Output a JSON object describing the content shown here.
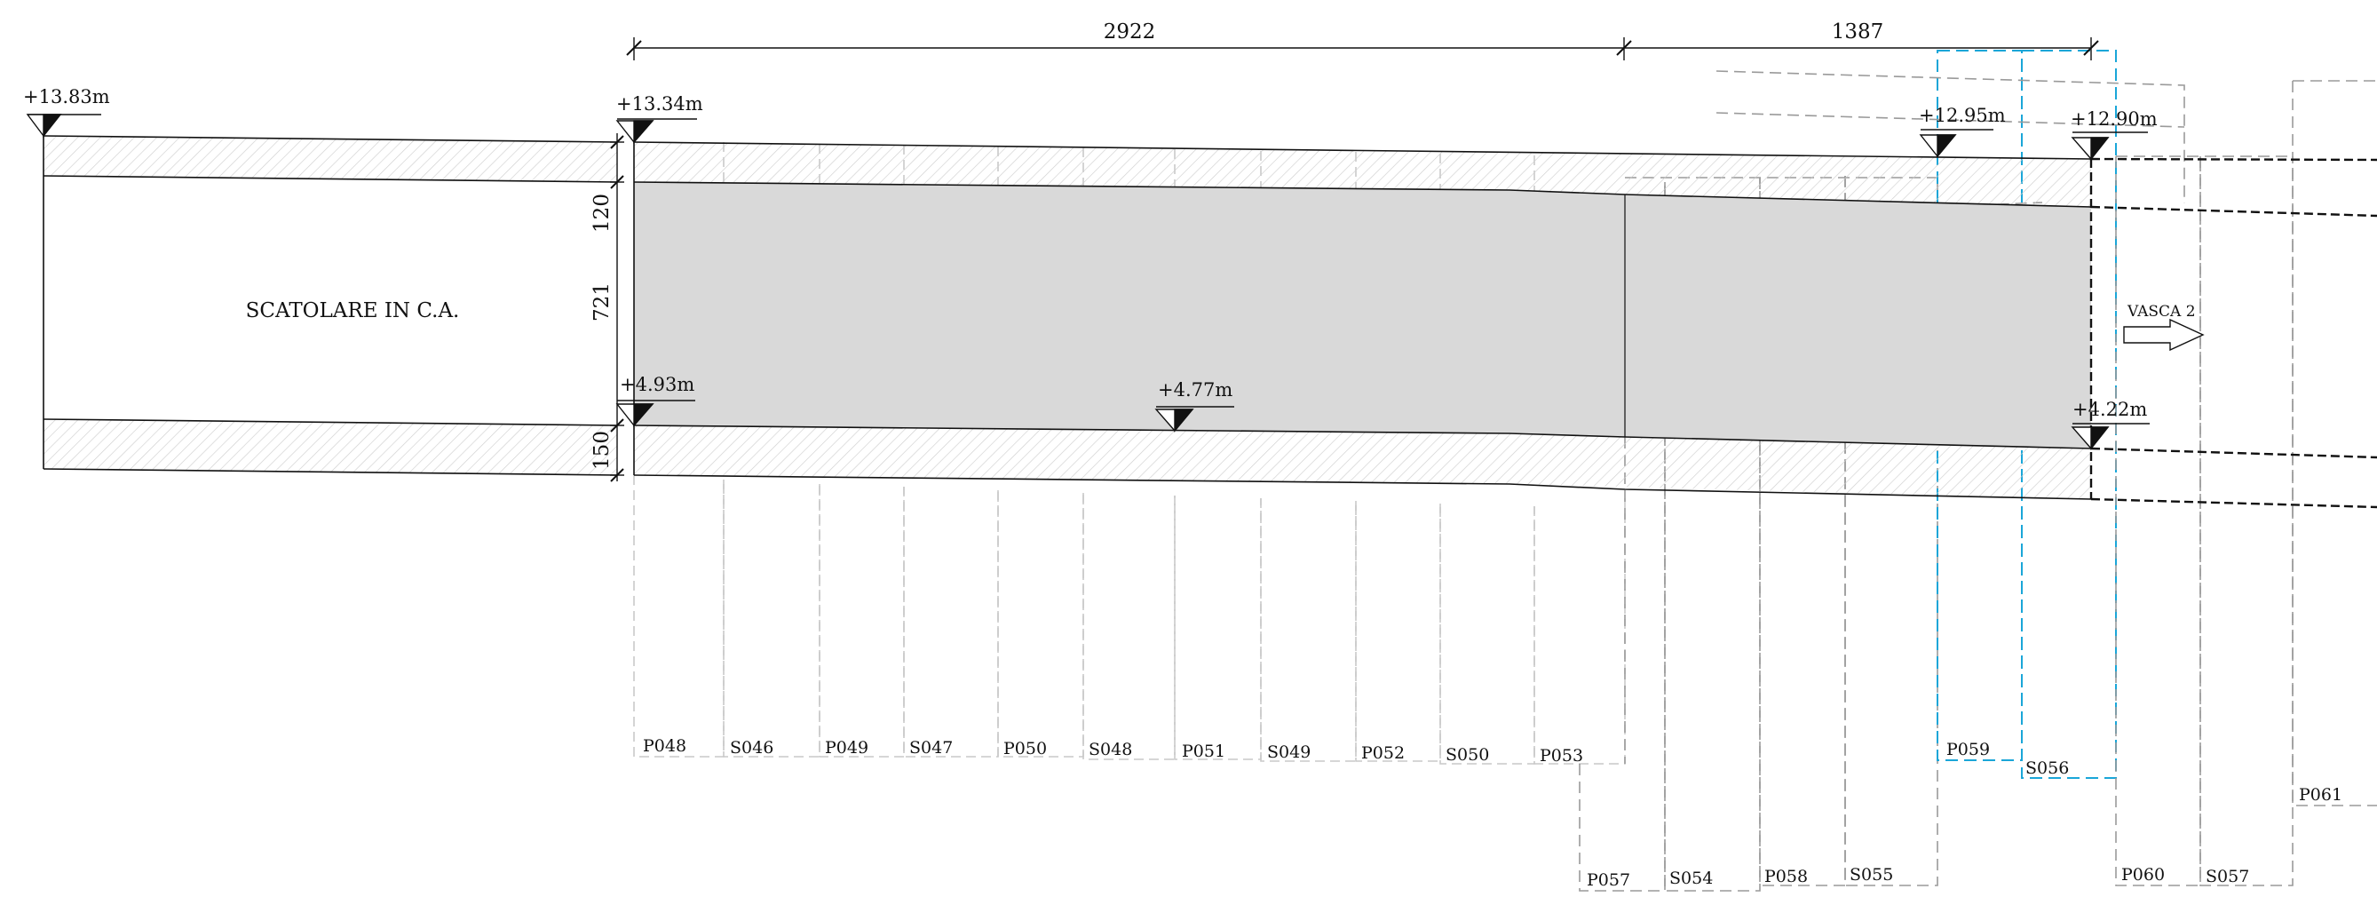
{
  "dimensions": {
    "top_left": "2922",
    "top_right": "1387",
    "vertical_top": "120",
    "vertical_middle": "721",
    "vertical_bottom": "150"
  },
  "elevations": {
    "far_left_top": "+13.83m",
    "left_top": "+13.34m",
    "right_top_1": "+12.95m",
    "right_top_2": "+12.90m",
    "left_bottom": "+4.93m",
    "middle_bottom": "+4.77m",
    "right_bottom": "+4.22m"
  },
  "labels": {
    "box_section": "SCATOLARE IN C.A.",
    "vasca": "VASCA 2"
  },
  "columns": {
    "row_a": [
      "P048",
      "S046",
      "P049",
      "S047",
      "P050",
      "S048",
      "P051",
      "S049",
      "P052",
      "S050",
      "P053"
    ],
    "row_b": [
      "P057",
      "S054",
      "P058",
      "S055"
    ],
    "highlighted": [
      "P059",
      "S056"
    ],
    "row_c": [
      "P060",
      "S057"
    ],
    "far_right": "P061"
  },
  "colors": {
    "line": "#111111",
    "fill_gray": "#d9d9d9",
    "hatch": "#c8c8c8",
    "dashed_gray": "#9a9a9a",
    "highlight_cyan": "#1aa6d8"
  }
}
